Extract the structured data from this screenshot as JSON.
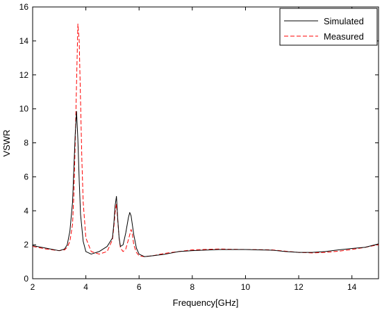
{
  "chart_data": {
    "type": "line",
    "title": "",
    "xlabel": "Frequency[GHz]",
    "ylabel": "VSWR",
    "xlim": [
      2,
      15
    ],
    "ylim": [
      0,
      16
    ],
    "xticks": [
      2,
      4,
      6,
      8,
      10,
      12,
      14
    ],
    "yticks": [
      0,
      2,
      4,
      6,
      8,
      10,
      12,
      14,
      16
    ],
    "grid": false,
    "legend_position": "top-right",
    "series": [
      {
        "name": "Simulated",
        "color": "#000000",
        "style": "solid",
        "x": [
          2.0,
          2.5,
          3.0,
          3.2,
          3.3,
          3.4,
          3.5,
          3.55,
          3.6,
          3.65,
          3.7,
          3.75,
          3.8,
          3.9,
          4.0,
          4.2,
          4.5,
          4.8,
          5.0,
          5.05,
          5.1,
          5.15,
          5.2,
          5.25,
          5.3,
          5.4,
          5.5,
          5.6,
          5.65,
          5.7,
          5.8,
          5.9,
          6.0,
          6.2,
          6.5,
          7.0,
          7.5,
          8.0,
          9.0,
          10.0,
          11.0,
          11.5,
          12.0,
          12.5,
          13.0,
          13.5,
          14.0,
          14.5,
          15.0
        ],
        "values": [
          1.95,
          1.8,
          1.65,
          1.75,
          2.0,
          2.8,
          4.5,
          6.5,
          8.5,
          9.85,
          8.2,
          5.8,
          3.8,
          2.2,
          1.6,
          1.45,
          1.6,
          1.9,
          2.4,
          3.2,
          4.3,
          4.85,
          3.5,
          2.4,
          1.9,
          2.0,
          2.7,
          3.6,
          3.9,
          3.7,
          2.6,
          1.8,
          1.45,
          1.3,
          1.35,
          1.45,
          1.6,
          1.65,
          1.72,
          1.72,
          1.68,
          1.6,
          1.55,
          1.55,
          1.6,
          1.7,
          1.78,
          1.85,
          2.05
        ]
      },
      {
        "name": "Measured",
        "color": "#ff0000",
        "style": "dashed",
        "x": [
          2.0,
          2.5,
          3.0,
          3.2,
          3.3,
          3.4,
          3.5,
          3.55,
          3.6,
          3.65,
          3.7,
          3.75,
          3.8,
          3.85,
          3.9,
          4.0,
          4.2,
          4.5,
          4.8,
          5.0,
          5.05,
          5.1,
          5.15,
          5.2,
          5.25,
          5.3,
          5.4,
          5.5,
          5.6,
          5.7,
          5.75,
          5.8,
          5.9,
          6.0,
          6.2,
          6.5,
          7.0,
          7.5,
          8.0,
          9.0,
          10.0,
          11.0,
          11.5,
          12.0,
          12.5,
          13.0,
          13.5,
          14.0,
          14.5,
          15.0
        ],
        "values": [
          1.9,
          1.75,
          1.65,
          1.7,
          1.85,
          2.2,
          3.2,
          5.0,
          8.0,
          11.5,
          15.0,
          14.0,
          10.5,
          7.0,
          4.5,
          2.4,
          1.6,
          1.45,
          1.6,
          2.3,
          3.0,
          3.9,
          4.4,
          3.4,
          2.4,
          1.8,
          1.6,
          1.75,
          2.3,
          2.9,
          2.6,
          2.0,
          1.55,
          1.35,
          1.3,
          1.35,
          1.5,
          1.6,
          1.7,
          1.75,
          1.72,
          1.7,
          1.62,
          1.55,
          1.52,
          1.55,
          1.62,
          1.72,
          1.85,
          2.0
        ]
      }
    ]
  }
}
